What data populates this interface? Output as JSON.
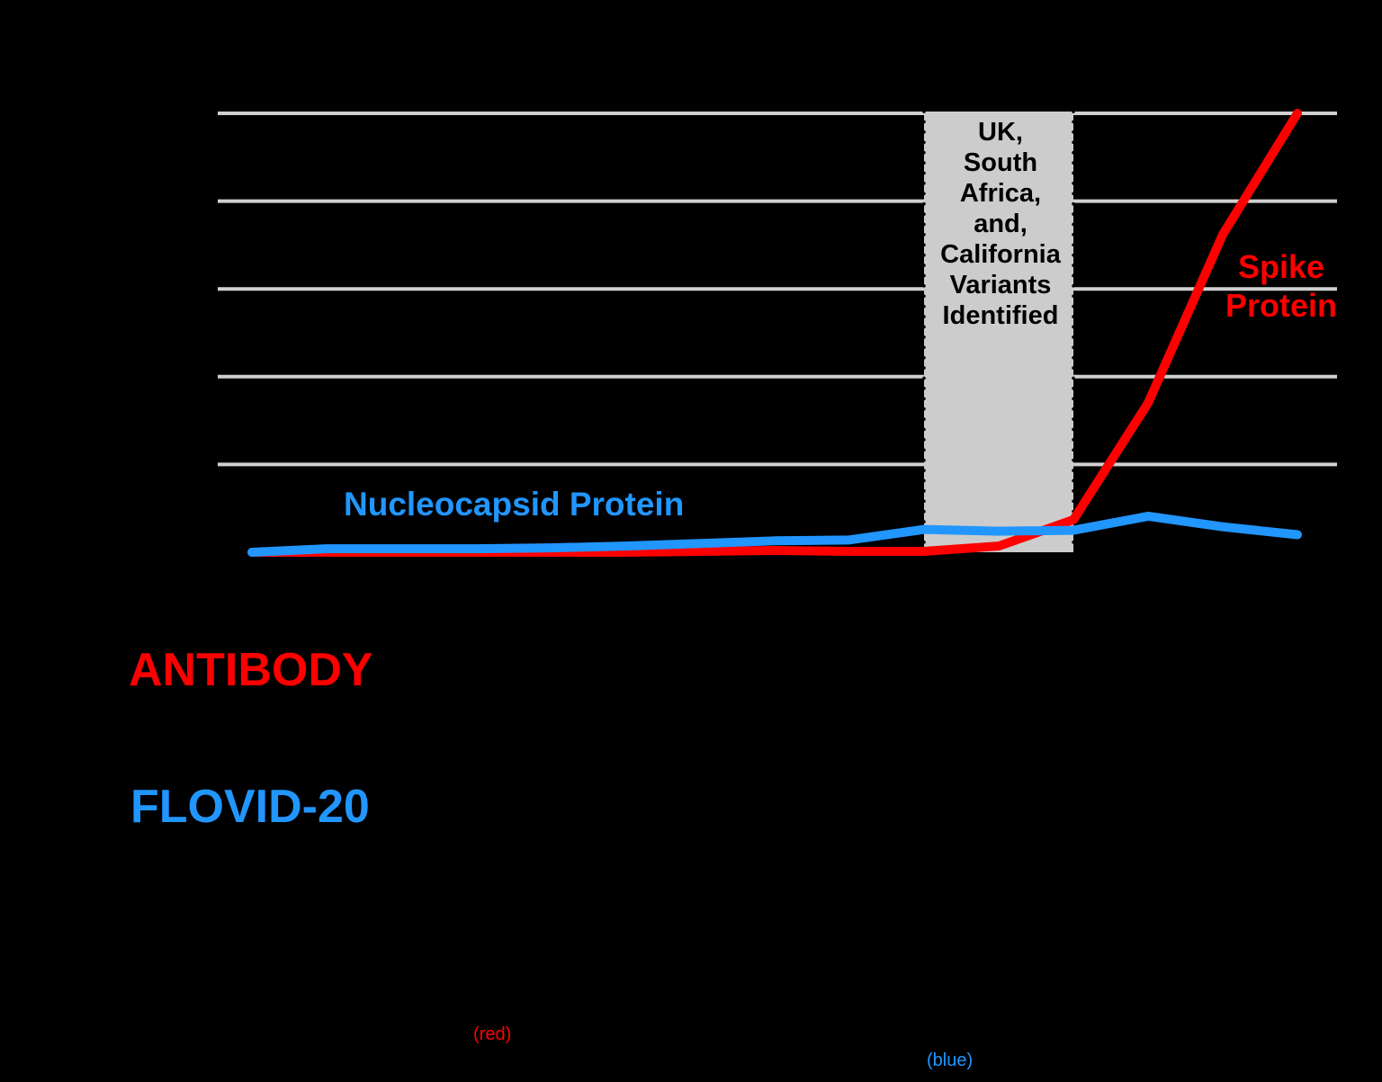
{
  "colors": {
    "background": "#000000",
    "gridline": "#d0d0d0",
    "band_fill": "#cccccc",
    "spike": "#ff0000",
    "nucleocapsid": "#2196ff"
  },
  "annotations": {
    "band": [
      "UK,",
      "South",
      "Africa,",
      "and,",
      "California",
      "Variants",
      "Identified"
    ],
    "spike_label": [
      "Spike",
      "Protein"
    ],
    "nucleocapsid_label": "Nucleocapsid Protein"
  },
  "legend": {
    "red_term": "ANTIBODY",
    "blue_term": "FLOVID-20",
    "red_note": "(red)",
    "blue_note": "(blue)"
  },
  "chart_data": {
    "type": "line",
    "title": "",
    "xlabel": "",
    "ylabel": "",
    "ylim": [
      0,
      5
    ],
    "grid": true,
    "gridlines_y": [
      1,
      2,
      3,
      4,
      5
    ],
    "x": [
      1,
      2,
      3,
      4,
      5,
      6,
      7,
      8,
      9,
      10,
      11,
      12,
      13,
      14,
      15
    ],
    "shaded_region": {
      "x_start": 10,
      "x_end": 12,
      "label": "UK, South Africa, and, California Variants Identified"
    },
    "series": [
      {
        "name": "Spike Protein",
        "color": "#ff0000",
        "values": [
          0.0,
          0.0,
          0.0,
          0.0,
          0.0,
          0.0,
          0.01,
          0.02,
          0.01,
          0.01,
          0.07,
          0.37,
          1.7,
          3.62,
          5.0
        ]
      },
      {
        "name": "Nucleocapsid Protein",
        "color": "#2196ff",
        "values": [
          0.0,
          0.04,
          0.04,
          0.04,
          0.05,
          0.07,
          0.1,
          0.13,
          0.14,
          0.26,
          0.24,
          0.25,
          0.41,
          0.29,
          0.2
        ]
      }
    ]
  }
}
